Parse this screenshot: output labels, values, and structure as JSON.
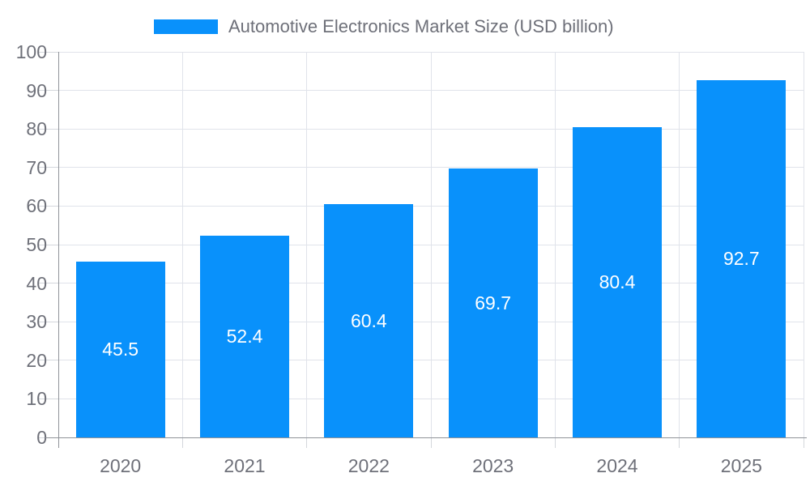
{
  "legend": {
    "label": "Automotive Electronics Market Size (USD billion)"
  },
  "chart_data": {
    "type": "bar",
    "title": "Automotive Electronics Market Size (USD billion)",
    "series_name": "Automotive Electronics Market Size (USD billion)",
    "categories": [
      "2020",
      "2021",
      "2022",
      "2023",
      "2024",
      "2025"
    ],
    "values": [
      45.5,
      52.4,
      60.4,
      69.7,
      80.4,
      92.7
    ],
    "value_labels": [
      "45.5",
      "52.4",
      "60.4",
      "69.7",
      "80.4",
      "92.7"
    ],
    "xlabel": "",
    "ylabel": "",
    "ylim": [
      0,
      100
    ],
    "yticks": [
      0,
      10,
      20,
      30,
      40,
      50,
      60,
      70,
      80,
      90,
      100
    ],
    "grid": true,
    "legend_position": "top",
    "value_label_position": "inside-center",
    "colors": {
      "bar": "#0991FB",
      "value_label_text": "#FFFFFF",
      "axis_text": "#6E7079",
      "grid_line": "#E0E3EA",
      "axis_line": "#909399",
      "tick": "#D4D7DC",
      "background": "#FFFFFF"
    }
  }
}
